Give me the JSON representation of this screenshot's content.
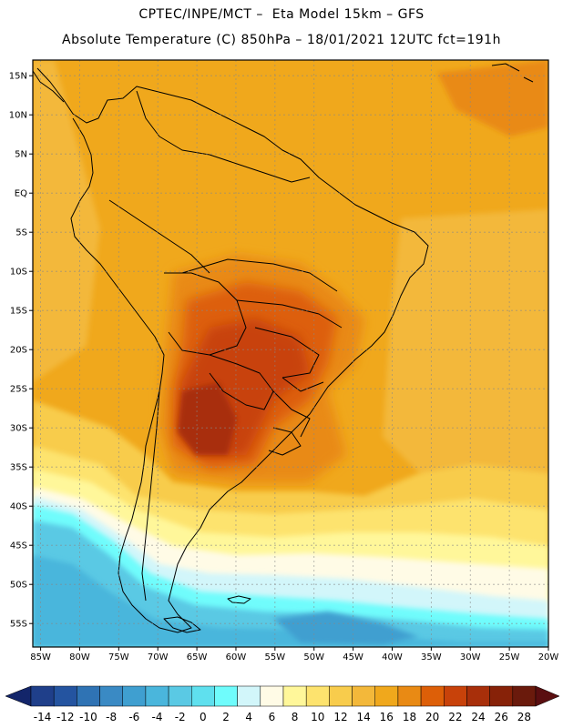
{
  "header": {
    "line1": "CPTEC/INPE/MCT –  Eta Model 15km – GFS",
    "line2": "Absolute Temperature (C) 850hPa – 18/01/2021 12UTC fct=191h"
  },
  "map": {
    "lon_min": -86,
    "lon_max": -20,
    "lat_min": -58,
    "lat_max": 17,
    "lon_ticks": [
      {
        "value": -85,
        "label": "85W"
      },
      {
        "value": -80,
        "label": "80W"
      },
      {
        "value": -75,
        "label": "75W"
      },
      {
        "value": -70,
        "label": "70W"
      },
      {
        "value": -65,
        "label": "65W"
      },
      {
        "value": -60,
        "label": "60W"
      },
      {
        "value": -55,
        "label": "55W"
      },
      {
        "value": -50,
        "label": "50W"
      },
      {
        "value": -45,
        "label": "45W"
      },
      {
        "value": -40,
        "label": "40W"
      },
      {
        "value": -35,
        "label": "35W"
      },
      {
        "value": -30,
        "label": "30W"
      },
      {
        "value": -25,
        "label": "25W"
      },
      {
        "value": -20,
        "label": "20W"
      }
    ],
    "lat_ticks": [
      {
        "value": 15,
        "label": "15N"
      },
      {
        "value": 10,
        "label": "10N"
      },
      {
        "value": 5,
        "label": "5N"
      },
      {
        "value": 0,
        "label": "EQ"
      },
      {
        "value": -5,
        "label": "5S"
      },
      {
        "value": -10,
        "label": "10S"
      },
      {
        "value": -15,
        "label": "15S"
      },
      {
        "value": -20,
        "label": "20S"
      },
      {
        "value": -25,
        "label": "25S"
      },
      {
        "value": -30,
        "label": "30S"
      },
      {
        "value": -35,
        "label": "35S"
      },
      {
        "value": -40,
        "label": "40S"
      },
      {
        "value": -45,
        "label": "45S"
      },
      {
        "value": -50,
        "label": "50S"
      },
      {
        "value": -55,
        "label": "55S"
      }
    ]
  },
  "colorbar": {
    "colors": [
      "#1f3f8a",
      "#2454a0",
      "#2f73b4",
      "#3a8ac4",
      "#3f9fd0",
      "#4ab6dc",
      "#5ac9e4",
      "#5fe0ee",
      "#6ffcfc",
      "#d2f6fa",
      "#fffbe6",
      "#fff79a",
      "#fde36e",
      "#f8cc4c",
      "#f3b83a",
      "#f0a81c",
      "#e98a14",
      "#dd5f08",
      "#c8420a",
      "#a82f0a",
      "#872208",
      "#6a1a0c"
    ],
    "under_color": "#13256a",
    "over_color": "#5a0e10",
    "labels": [
      "-14",
      "-12",
      "-10",
      "-8",
      "-6",
      "-4",
      "-2",
      "0",
      "2",
      "4",
      "6",
      "8",
      "10",
      "12",
      "14",
      "16",
      "18",
      "20",
      "22",
      "24",
      "26",
      "28"
    ]
  }
}
